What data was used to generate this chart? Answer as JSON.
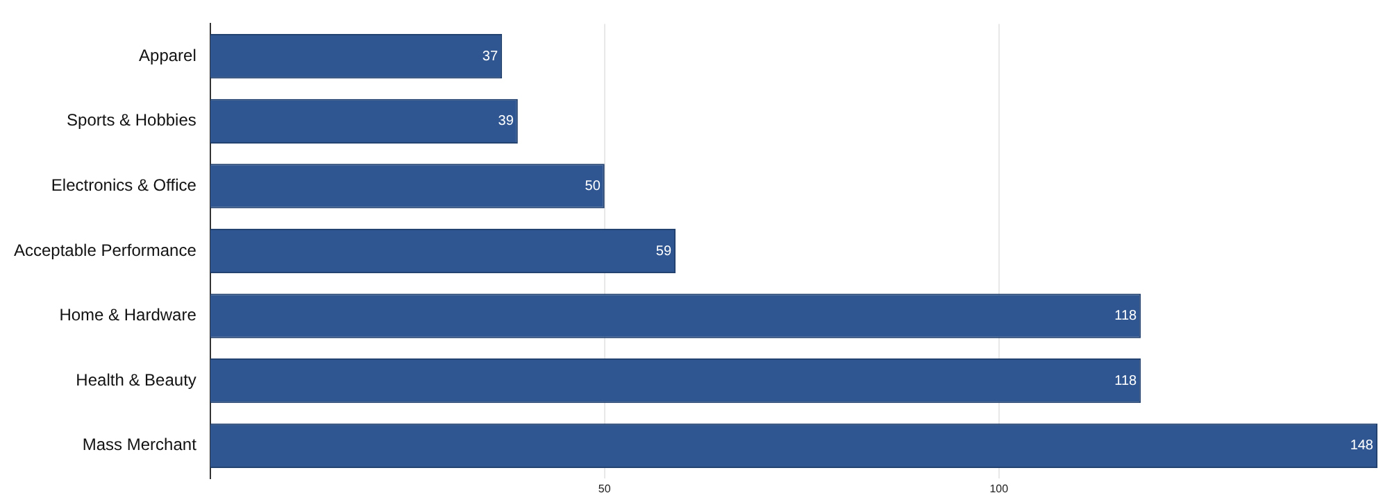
{
  "chart_data": {
    "type": "bar",
    "orientation": "horizontal",
    "categories": [
      "Apparel",
      "Sports & Hobbies",
      "Electronics & Office",
      "Acceptable Performance",
      "Home & Hardware",
      "Health & Beauty",
      "Mass Merchant"
    ],
    "values": [
      37,
      39,
      50,
      59,
      118,
      118,
      148
    ],
    "color": "#2f5690",
    "xlim": [
      0,
      148
    ],
    "xticks": [
      50,
      100
    ],
    "grid": "x",
    "data_labels": true
  }
}
